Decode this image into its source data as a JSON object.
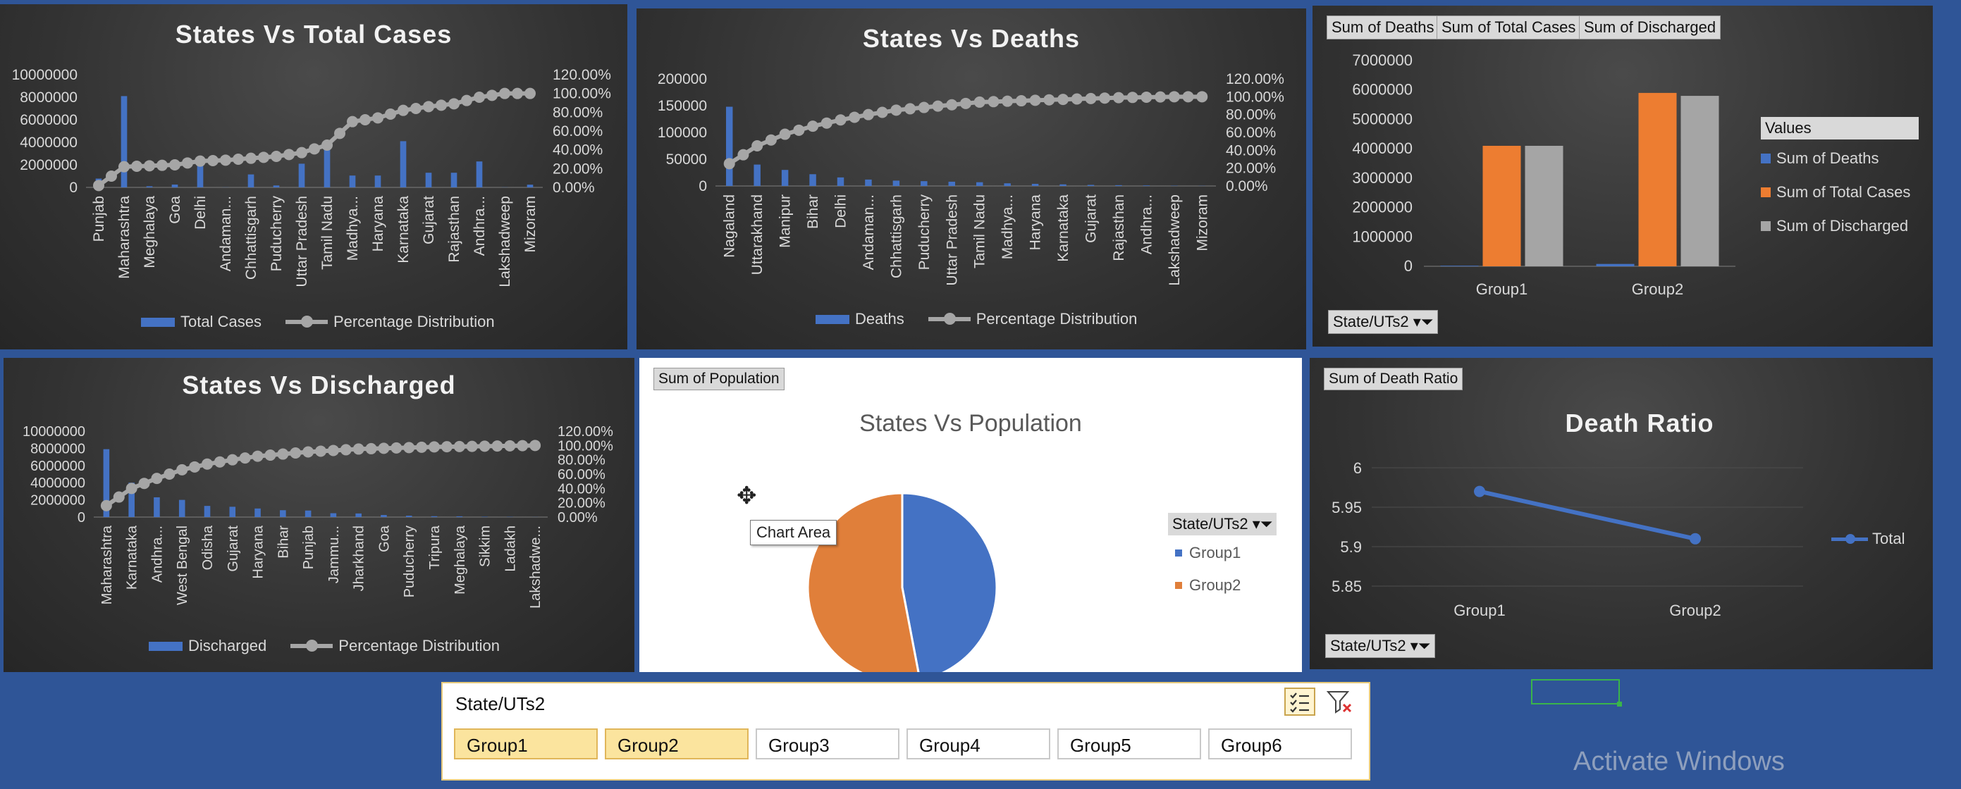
{
  "charts": {
    "total_cases": {
      "title": "States Vs Total Cases",
      "legend": {
        "bars": "Total Cases",
        "line": "Percentage Distribution"
      },
      "left_ticks": [
        "0",
        "2000000",
        "4000000",
        "6000000",
        "8000000",
        "10000000"
      ],
      "right_ticks": [
        "0.00%",
        "20.00%",
        "40.00%",
        "60.00%",
        "80.00%",
        "100.00%",
        "120.00%"
      ],
      "x_labels": [
        "Punjab",
        "Maharashtra",
        "Meghalaya",
        "Goa",
        "Delhi",
        "Andaman...",
        "Chhattisgarh",
        "Puducherry",
        "Uttar Pradesh",
        "Tamil Nadu",
        "Madhya...",
        "Haryana",
        "Karnataka",
        "Gujarat",
        "Rajasthan",
        "Andhra...",
        "Lakshadweep",
        "Mizoram"
      ]
    },
    "deaths": {
      "title": "States Vs Deaths",
      "legend": {
        "bars": "Deaths",
        "line": "Percentage Distribution"
      },
      "left_ticks": [
        "0",
        "50000",
        "100000",
        "150000",
        "200000"
      ],
      "right_ticks": [
        "0.00%",
        "20.00%",
        "40.00%",
        "60.00%",
        "80.00%",
        "100.00%",
        "120.00%"
      ],
      "x_labels": [
        "Nagaland",
        "Uttarakhand",
        "Manipur",
        "Bihar",
        "Delhi",
        "Andaman...",
        "Chhattisgarh",
        "Puducherry",
        "Uttar Pradesh",
        "Tamil Nadu",
        "Madhya...",
        "Haryana",
        "Karnataka",
        "Gujarat",
        "Rajasthan",
        "Andhra...",
        "Lakshadweep",
        "Mizoram"
      ]
    },
    "discharged": {
      "title": "States Vs Discharged",
      "legend": {
        "bars": "Discharged",
        "line": "Percentage Distribution"
      },
      "left_ticks": [
        "0",
        "2000000",
        "4000000",
        "6000000",
        "8000000",
        "10000000"
      ],
      "right_ticks": [
        "0.00%",
        "20.00%",
        "40.00%",
        "60.00%",
        "80.00%",
        "100.00%",
        "120.00%"
      ],
      "x_labels": [
        "Maharashtra",
        "Karnataka",
        "Andhra...",
        "West Bengal",
        "Odisha",
        "Gujarat",
        "Haryana",
        "Bihar",
        "Punjab",
        "Jammu...",
        "Jharkhand",
        "Goa",
        "Puducherry",
        "Tripura",
        "Meghalaya",
        "Sikkim",
        "Ladakh",
        "Lakshadwe..."
      ]
    },
    "group_sums": {
      "field_buttons": [
        "Sum of Deaths",
        "Sum of Total Cases",
        "Sum of Discharged"
      ],
      "filter_button": "State/UTs2",
      "legend_title": "Values",
      "left_ticks": [
        "0",
        "1000000",
        "2000000",
        "3000000",
        "4000000",
        "5000000",
        "6000000",
        "7000000"
      ],
      "categories": [
        "Group1",
        "Group2"
      ]
    },
    "population": {
      "field_button": "Sum of Population",
      "title": "States Vs Population",
      "tooltip": "Chart Area",
      "legend_title": "State/UTs2",
      "legend": [
        "Group1",
        "Group2"
      ]
    },
    "death_ratio": {
      "field_button": "Sum of Death Ratio",
      "title": "Death Ratio",
      "filter_button": "State/UTs2",
      "left_ticks": [
        "5.85",
        "5.9",
        "5.95",
        "6"
      ],
      "categories": [
        "Group1",
        "Group2"
      ],
      "legend": "Total"
    }
  },
  "chart_data": [
    {
      "type": "bar",
      "title": "States Vs Total Cases",
      "categories": [
        "Punjab",
        "Maharashtra",
        "Meghalaya",
        "Goa",
        "Delhi",
        "Andaman...",
        "Chhattisgarh",
        "Puducherry",
        "Uttar Pradesh",
        "Tamil Nadu",
        "Madhya...",
        "Haryana",
        "Karnataka",
        "Gujarat",
        "Rajasthan",
        "Andhra...",
        "Lakshadweep",
        "Mizoram"
      ],
      "series": [
        {
          "name": "Total Cases",
          "values": [
            780000,
            8100000,
            100000,
            250000,
            2000000,
            10000,
            1150000,
            170000,
            2100000,
            3500000,
            1050000,
            1050000,
            4100000,
            1300000,
            1300000,
            2300000,
            11000,
            240000
          ]
        },
        {
          "name": "Percentage Distribution",
          "axis": "secondary",
          "values": [
            0.02,
            0.22,
            0.23,
            0.24,
            0.28,
            0.29,
            0.31,
            0.33,
            0.37,
            0.45,
            0.7,
            0.74,
            0.82,
            0.86,
            0.89,
            0.96,
            1.0,
            1.0
          ]
        }
      ],
      "ylim": [
        0,
        10000000
      ],
      "y2lim": [
        0,
        1.2
      ]
    },
    {
      "type": "bar",
      "title": "States Vs Deaths",
      "categories": [
        "Nagaland",
        "Uttarakhand",
        "Manipur",
        "Bihar",
        "Delhi",
        "Andaman...",
        "Chhattisgarh",
        "Puducherry",
        "Uttar Pradesh",
        "Tamil Nadu",
        "Madhya...",
        "Haryana",
        "Karnataka",
        "Gujarat",
        "Rajasthan",
        "Andhra...",
        "Lakshadweep",
        "Mizoram"
      ],
      "series": [
        {
          "name": "Deaths",
          "values": [
            148000,
            40000,
            30000,
            22000,
            16000,
            12000,
            10000,
            9000,
            8000,
            7000,
            5000,
            4000,
            3000,
            2000,
            1500,
            1000,
            500,
            300
          ]
        },
        {
          "name": "Percentage Distribution",
          "axis": "secondary",
          "values": [
            0.25,
            0.45,
            0.58,
            0.67,
            0.74,
            0.8,
            0.85,
            0.88,
            0.91,
            0.94,
            0.95,
            0.96,
            0.97,
            0.98,
            0.99,
            0.995,
            1.0,
            1.0
          ]
        }
      ],
      "ylim": [
        0,
        200000
      ],
      "y2lim": [
        0,
        1.2
      ]
    },
    {
      "type": "bar",
      "title": "States Vs Discharged",
      "categories": [
        "Maharashtra",
        "Karnataka",
        "Andhra...",
        "West Bengal",
        "Odisha",
        "Gujarat",
        "Haryana",
        "Bihar",
        "Punjab",
        "Jammu...",
        "Jharkhand",
        "Goa",
        "Puducherry",
        "Tripura",
        "Meghalaya",
        "Sikkim",
        "Ladakh",
        "Lakshadwe..."
      ],
      "series": [
        {
          "name": "Discharged",
          "values": [
            7900000,
            4000000,
            2300000,
            2000000,
            1300000,
            1200000,
            1000000,
            800000,
            760000,
            450000,
            420000,
            240000,
            160000,
            100000,
            90000,
            40000,
            28000,
            11000
          ]
        },
        {
          "name": "Percentage Distribution",
          "axis": "secondary",
          "values": [
            0.16,
            0.4,
            0.54,
            0.66,
            0.74,
            0.8,
            0.85,
            0.88,
            0.91,
            0.93,
            0.95,
            0.96,
            0.97,
            0.98,
            0.985,
            0.99,
            0.995,
            1.0
          ]
        }
      ],
      "ylim": [
        0,
        10000000
      ],
      "y2lim": [
        0,
        1.2
      ]
    },
    {
      "type": "bar",
      "categories": [
        "Group1",
        "Group2"
      ],
      "series": [
        {
          "name": "Sum of Deaths",
          "values": [
            20000,
            80000
          ]
        },
        {
          "name": "Sum of Total Cases",
          "values": [
            4100000,
            5900000
          ]
        },
        {
          "name": "Sum of Discharged",
          "values": [
            4100000,
            5800000
          ]
        }
      ],
      "ylim": [
        0,
        7000000
      ]
    },
    {
      "type": "pie",
      "title": "States Vs Population",
      "categories": [
        "Group1",
        "Group2"
      ],
      "values": [
        47,
        53
      ]
    },
    {
      "type": "line",
      "title": "Death Ratio",
      "categories": [
        "Group1",
        "Group2"
      ],
      "series": [
        {
          "name": "Total",
          "values": [
            5.97,
            5.91
          ]
        }
      ],
      "ylim": [
        5.85,
        6.0
      ]
    }
  ],
  "colors": {
    "bar": "#4472c4",
    "line": "#a6a6a6",
    "orange": "#ed7d31",
    "gray": "#a5a5a5",
    "pie_blue": "#4472c4",
    "pie_orange": "#e07f3a",
    "bg": "#2f5597"
  },
  "slicer": {
    "title": "State/UTs2",
    "items": [
      "Group1",
      "Group2",
      "Group3",
      "Group4",
      "Group5",
      "Group6"
    ],
    "selected": [
      true,
      true,
      false,
      false,
      false,
      false
    ]
  },
  "watermark": "Activate Windows"
}
